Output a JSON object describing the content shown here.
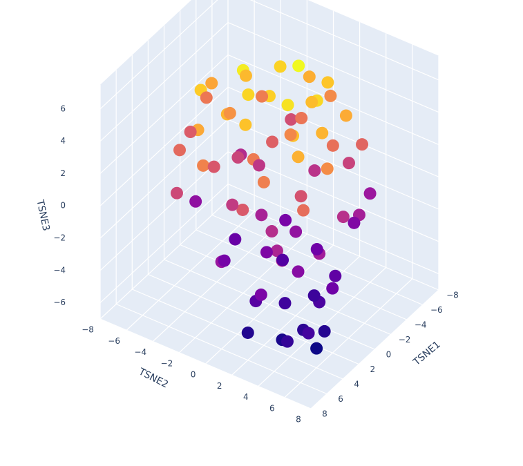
{
  "chart_data": {
    "type": "scatter3d",
    "xaxis_title": "TSNE1",
    "yaxis_title": "TSNE2",
    "zaxis_title": "TSNE3",
    "xlim": [
      -8,
      8
    ],
    "ylim": [
      -8,
      8
    ],
    "zlim": [
      -7,
      7.5
    ],
    "xticks": [
      {
        "value": -8,
        "label": "−8"
      },
      {
        "value": -6,
        "label": "−6"
      },
      {
        "value": -4,
        "label": "−4"
      },
      {
        "value": -2,
        "label": "−2"
      },
      0,
      2,
      4,
      6,
      8
    ],
    "yticks": [
      {
        "value": -8,
        "label": "−8"
      },
      {
        "value": -6,
        "label": "−6"
      },
      {
        "value": -4,
        "label": "−4"
      },
      {
        "value": -2,
        "label": "−2"
      },
      0,
      2,
      4,
      6,
      8
    ],
    "zticks": [
      {
        "value": -6,
        "label": "−6"
      },
      {
        "value": -4,
        "label": "−4"
      },
      {
        "value": -2,
        "label": "−2"
      },
      0,
      2,
      4,
      6
    ],
    "grid": true,
    "colorscale": [
      "#0d0887",
      "#46039f",
      "#7201a8",
      "#9c179e",
      "#bd3786",
      "#d8576b",
      "#ed7953",
      "#fb9f3a",
      "#fdca26",
      "#f0f921"
    ],
    "x": [
      0,
      -2,
      1,
      -3,
      2,
      -1,
      3,
      -4,
      0,
      1,
      -2,
      2,
      -5,
      4,
      -1,
      3,
      0,
      -3,
      2,
      -2,
      -6,
      5,
      -4,
      1,
      -2,
      4,
      0,
      -3,
      2,
      -1,
      3,
      -5,
      5,
      -2,
      1,
      0,
      -6,
      4,
      -4,
      2,
      -5,
      3,
      -1,
      5,
      -3,
      1,
      -6,
      4,
      0,
      -2,
      2,
      -4,
      6,
      -1,
      3,
      1,
      -3,
      5,
      2,
      -1,
      4,
      0,
      3,
      -2,
      1,
      5,
      -4,
      2,
      6,
      0,
      3,
      4,
      5,
      2,
      6,
      4,
      3,
      5,
      1,
      6
    ],
    "y": [
      -2,
      1,
      2,
      -1,
      -4,
      3,
      0,
      2,
      0,
      -1,
      -3,
      3,
      0,
      -3,
      -5,
      4,
      4,
      4,
      -2,
      2,
      1,
      -2,
      -3,
      5,
      -6,
      2,
      -3,
      3,
      0,
      1,
      -5,
      4,
      1,
      -1,
      3,
      -6,
      -2,
      5,
      0,
      -3,
      3,
      -1,
      5,
      -4,
      -4,
      0,
      4,
      3,
      2,
      -2,
      5,
      1,
      0,
      -3,
      2,
      -5,
      5,
      4,
      1,
      3,
      -1,
      5,
      4,
      0,
      -2,
      2,
      4,
      6,
      3,
      1,
      3,
      5,
      4,
      5,
      5,
      6,
      6,
      6,
      4,
      2
    ],
    "z": [
      6.8,
      7.2,
      6.5,
      6.0,
      5.8,
      6.2,
      5.5,
      5.6,
      5.9,
      6.1,
      5.2,
      5.4,
      4.8,
      4.6,
      4.5,
      4.9,
      5.0,
      4.7,
      5.0,
      5.3,
      3.5,
      3.2,
      3.0,
      3.6,
      2.8,
      3.1,
      3.8,
      2.5,
      2.9,
      3.4,
      2.2,
      2.0,
      1.5,
      1.8,
      1.2,
      1.6,
      1.0,
      2.4,
      2.7,
      1.4,
      0.5,
      0.2,
      -0.3,
      0.8,
      -0.5,
      -1.0,
      -1.5,
      -0.8,
      -1.8,
      0.0,
      -1.2,
      -0.2,
      -1.6,
      0.6,
      -0.4,
      -1.9,
      -1.1,
      -0.6,
      -2.5,
      -3.0,
      -2.8,
      -3.5,
      -2.2,
      -2.7,
      -3.2,
      -3.8,
      -2.4,
      -3.0,
      -2.6,
      -3.9,
      -4.5,
      -5.0,
      -5.5,
      -4.2,
      -4.8,
      -5.8,
      -5.2,
      -4.4,
      -4.6,
      -5.3
    ]
  }
}
